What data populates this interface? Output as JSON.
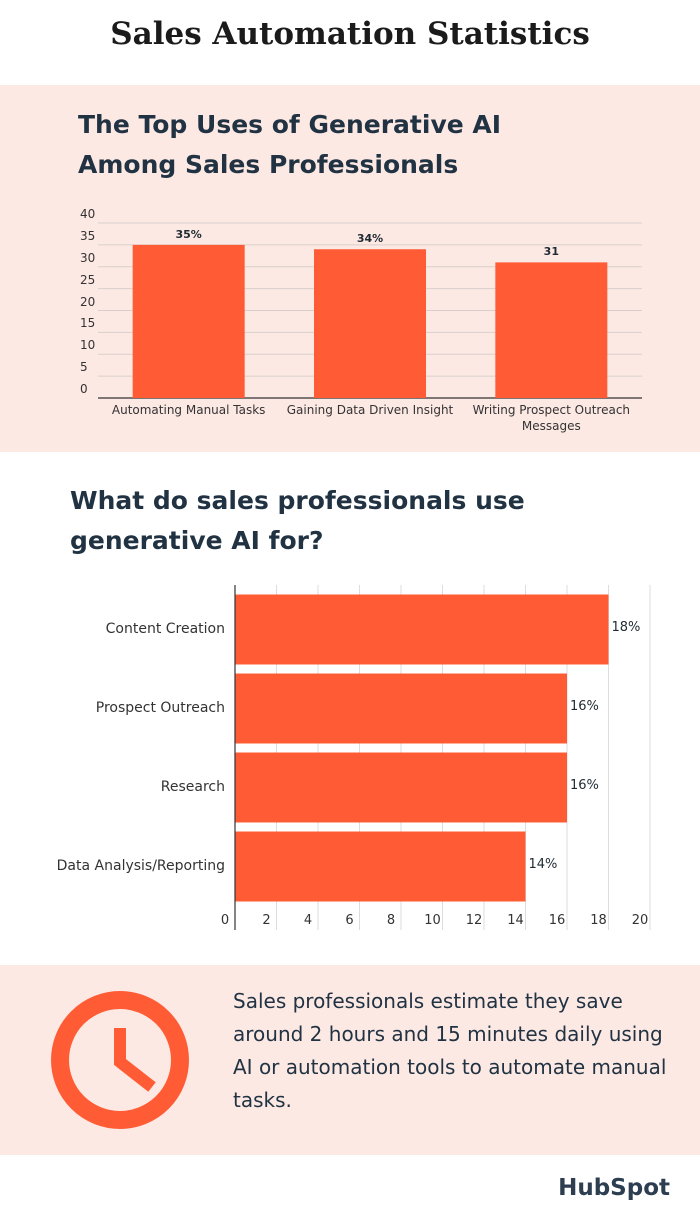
{
  "title": "Sales Automation Statistics",
  "chart_data": [
    {
      "type": "bar",
      "title": "The Top Uses of Generative AI Among Sales Professionals",
      "categories": [
        "Automating Manual Tasks",
        "Gaining Data Driven Insight",
        "Writing Prospect Outreach Messages"
      ],
      "values": [
        35,
        34,
        31
      ],
      "value_labels": [
        "35%",
        "34%",
        "31"
      ],
      "color": "#ff5c35",
      "ylim": [
        0,
        40
      ],
      "yticks": [
        0,
        5,
        10,
        15,
        20,
        25,
        30,
        35,
        40
      ],
      "grid": true
    },
    {
      "type": "hbar",
      "title": "What do sales professionals use generative AI for?",
      "categories": [
        "Content Creation",
        "Prospect Outreach",
        "Research",
        "Data Analysis/Reporting"
      ],
      "values": [
        18,
        16,
        16,
        14
      ],
      "value_labels": [
        "18%",
        "16%",
        "16%",
        "14%"
      ],
      "color": "#ff5c35",
      "xlim": [
        0,
        20
      ],
      "xticks": [
        0,
        2,
        4,
        6,
        8,
        10,
        12,
        14,
        16,
        18,
        20
      ],
      "grid": true
    }
  ],
  "callout": "Sales professionals estimate they save around 2 hours and 15 minutes daily using AI or automation tools to automate manual tasks.",
  "logo": "HubSpot"
}
